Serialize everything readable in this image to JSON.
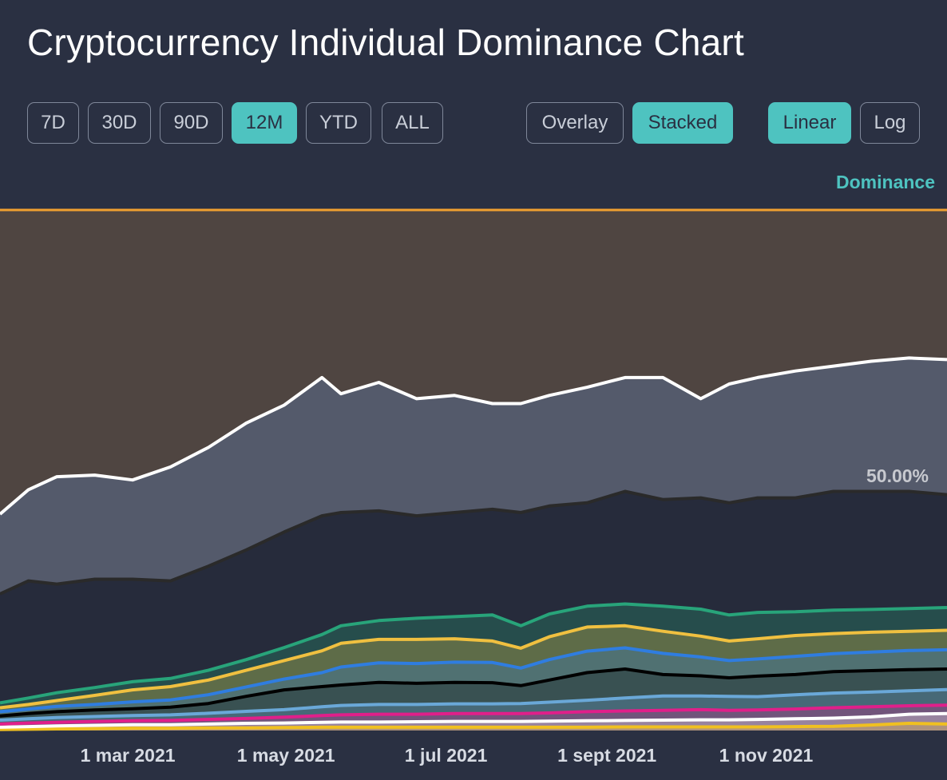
{
  "page_title": "Cryptocurrency Individual Dominance Chart",
  "range_buttons": [
    {
      "label": "7D",
      "active": false
    },
    {
      "label": "30D",
      "active": false
    },
    {
      "label": "90D",
      "active": false
    },
    {
      "label": "12M",
      "active": true
    },
    {
      "label": "YTD",
      "active": false
    },
    {
      "label": "ALL",
      "active": false
    }
  ],
  "mode_buttons": [
    {
      "label": "Overlay",
      "active": false
    },
    {
      "label": "Stacked",
      "active": true
    }
  ],
  "scale_buttons": [
    {
      "label": "Linear",
      "active": true
    },
    {
      "label": "Log",
      "active": false
    }
  ],
  "axis_title": "Dominance",
  "percent_label": "50.00%",
  "colors": {
    "background": "#2a3042",
    "accent": "#4ec3c0",
    "top_area": "#4f4541",
    "top_border": "#f0a030"
  },
  "chart_data": {
    "type": "area",
    "stacked": true,
    "ylim": [
      0,
      100
    ],
    "y_unit": "%",
    "x_ticks": [
      "1 mar 2021",
      "1 may 2021",
      "1 jul 2021",
      "1 sept 2021",
      "1 nov 2021"
    ],
    "x_tick_frac": [
      0.135,
      0.302,
      0.471,
      0.641,
      0.809
    ],
    "x": [
      0.0,
      0.03,
      0.06,
      0.1,
      0.14,
      0.18,
      0.22,
      0.26,
      0.3,
      0.34,
      0.36,
      0.4,
      0.44,
      0.48,
      0.52,
      0.55,
      0.58,
      0.62,
      0.66,
      0.7,
      0.74,
      0.77,
      0.8,
      0.84,
      0.88,
      0.92,
      0.96,
      1.0
    ],
    "series": [
      {
        "color": "#f0c020",
        "cum": [
          0.3,
          0.4,
          0.5,
          0.6,
          0.7,
          0.7,
          0.8,
          0.8,
          0.9,
          1.0,
          1.0,
          1.0,
          1.0,
          1.0,
          1.0,
          1.0,
          1.0,
          1.0,
          1.1,
          1.1,
          1.1,
          1.1,
          1.1,
          1.2,
          1.3,
          1.7,
          2.2,
          2.0
        ]
      },
      {
        "color": "#ffffff",
        "cum": [
          1.0,
          1.2,
          1.4,
          1.6,
          1.8,
          1.8,
          2.0,
          2.2,
          2.3,
          2.5,
          2.6,
          2.6,
          2.7,
          2.8,
          2.8,
          2.8,
          2.9,
          3.0,
          3.1,
          3.2,
          3.3,
          3.3,
          3.4,
          3.6,
          3.8,
          4.2,
          5.0,
          5.2
        ]
      },
      {
        "color": "#e01f8a",
        "cum": [
          2.0,
          2.3,
          2.5,
          2.8,
          3.0,
          3.1,
          3.4,
          3.7,
          4.1,
          4.6,
          4.8,
          5.0,
          5.0,
          5.2,
          5.2,
          5.2,
          5.4,
          5.8,
          6.0,
          6.2,
          6.4,
          6.2,
          6.3,
          6.6,
          7.0,
          7.3,
          7.6,
          7.8
        ]
      },
      {
        "color": "#6aa8d8",
        "cum": [
          3.2,
          3.6,
          4.0,
          4.3,
          4.6,
          4.8,
          5.3,
          5.9,
          6.4,
          7.3,
          7.7,
          8.0,
          8.0,
          8.2,
          8.2,
          8.3,
          8.7,
          9.3,
          10.0,
          10.6,
          10.6,
          10.5,
          10.4,
          11.0,
          11.5,
          11.8,
          12.2,
          12.6
        ]
      },
      {
        "color": "#000000",
        "cum": [
          4.5,
          5.2,
          5.8,
          6.3,
          6.7,
          7.2,
          8.3,
          10.5,
          12.5,
          13.5,
          14.0,
          14.8,
          14.5,
          14.8,
          14.7,
          13.8,
          15.5,
          17.8,
          18.9,
          17.2,
          16.8,
          16.2,
          16.7,
          17.2,
          18.1,
          18.4,
          18.7,
          18.9
        ]
      },
      {
        "color": "#2f7de0",
        "cum": [
          5.8,
          6.6,
          7.4,
          8.0,
          8.8,
          9.4,
          11.0,
          13.4,
          15.8,
          17.8,
          19.5,
          20.8,
          20.6,
          21.0,
          20.9,
          19.2,
          21.8,
          24.4,
          25.4,
          23.7,
          22.6,
          21.5,
          22.0,
          22.8,
          23.6,
          24.1,
          24.6,
          24.8
        ]
      },
      {
        "color": "#f0c040",
        "cum": [
          7.0,
          8.0,
          9.2,
          10.8,
          12.5,
          13.5,
          15.5,
          18.5,
          21.5,
          24.5,
          26.8,
          28.0,
          28.0,
          28.2,
          27.5,
          25.3,
          28.8,
          31.8,
          32.2,
          30.5,
          29.0,
          27.5,
          28.2,
          29.2,
          29.8,
          30.2,
          30.5,
          30.8
        ]
      },
      {
        "color": "#28a47a",
        "cum": [
          8.5,
          10.0,
          11.6,
          13.2,
          15.0,
          16.0,
          18.5,
          21.8,
          25.5,
          29.5,
          32.2,
          33.8,
          34.5,
          35.0,
          35.5,
          32.2,
          35.8,
          38.2,
          38.9,
          38.2,
          37.3,
          35.5,
          36.3,
          36.5,
          37.0,
          37.2,
          37.5,
          37.8
        ]
      },
      {
        "color": "#262b3b",
        "border": "#2a2a2a",
        "cum": [
          42.0,
          46.0,
          45.0,
          46.5,
          46.5,
          46.0,
          50.5,
          55.5,
          61.0,
          66.0,
          67.0,
          67.5,
          66.0,
          67.0,
          68.0,
          67.0,
          69.0,
          70.0,
          73.5,
          71.0,
          71.5,
          70.0,
          71.5,
          71.5,
          73.5,
          73.5,
          73.5,
          72.5
        ]
      },
      {
        "color": "#545a6b",
        "border": "#ffffff",
        "cum": [
          66.5,
          74.0,
          78.0,
          78.5,
          77.0,
          81.0,
          87.0,
          94.5,
          100.0,
          108.5,
          103.5,
          107.0,
          102.0,
          103.0,
          100.5,
          100.5,
          103.0,
          105.5,
          108.5,
          108.5,
          102.0,
          106.5,
          108.5,
          110.5,
          112.0,
          113.5,
          114.5,
          114.0
        ]
      }
    ]
  }
}
